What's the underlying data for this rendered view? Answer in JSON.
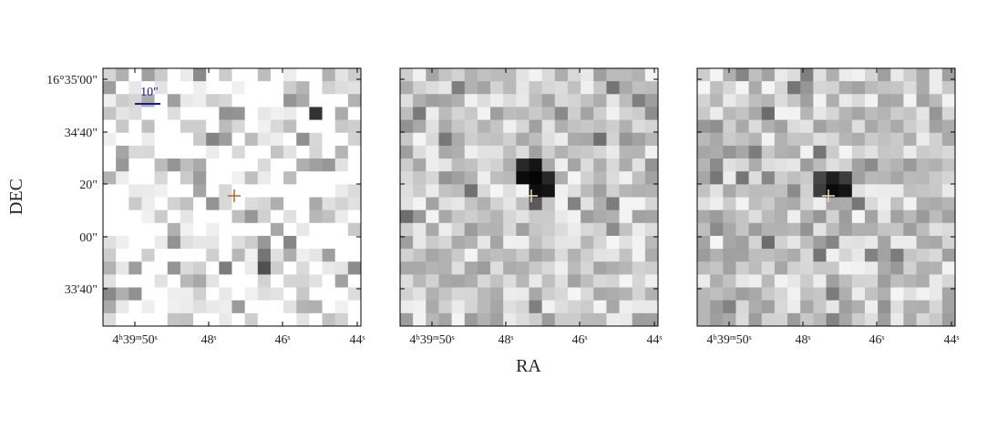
{
  "figure": {
    "y_label": "DEC",
    "x_label": "RA",
    "y_ticks": [
      "16°35'00\"",
      "34'40\"",
      "20\"",
      "00\"",
      "33'40\""
    ],
    "x_ticks": [
      "4ʰ39ᵐ50ˢ",
      "48ˢ",
      "46ˢ",
      "44ˢ"
    ],
    "scale_bar": "10″"
  }
}
